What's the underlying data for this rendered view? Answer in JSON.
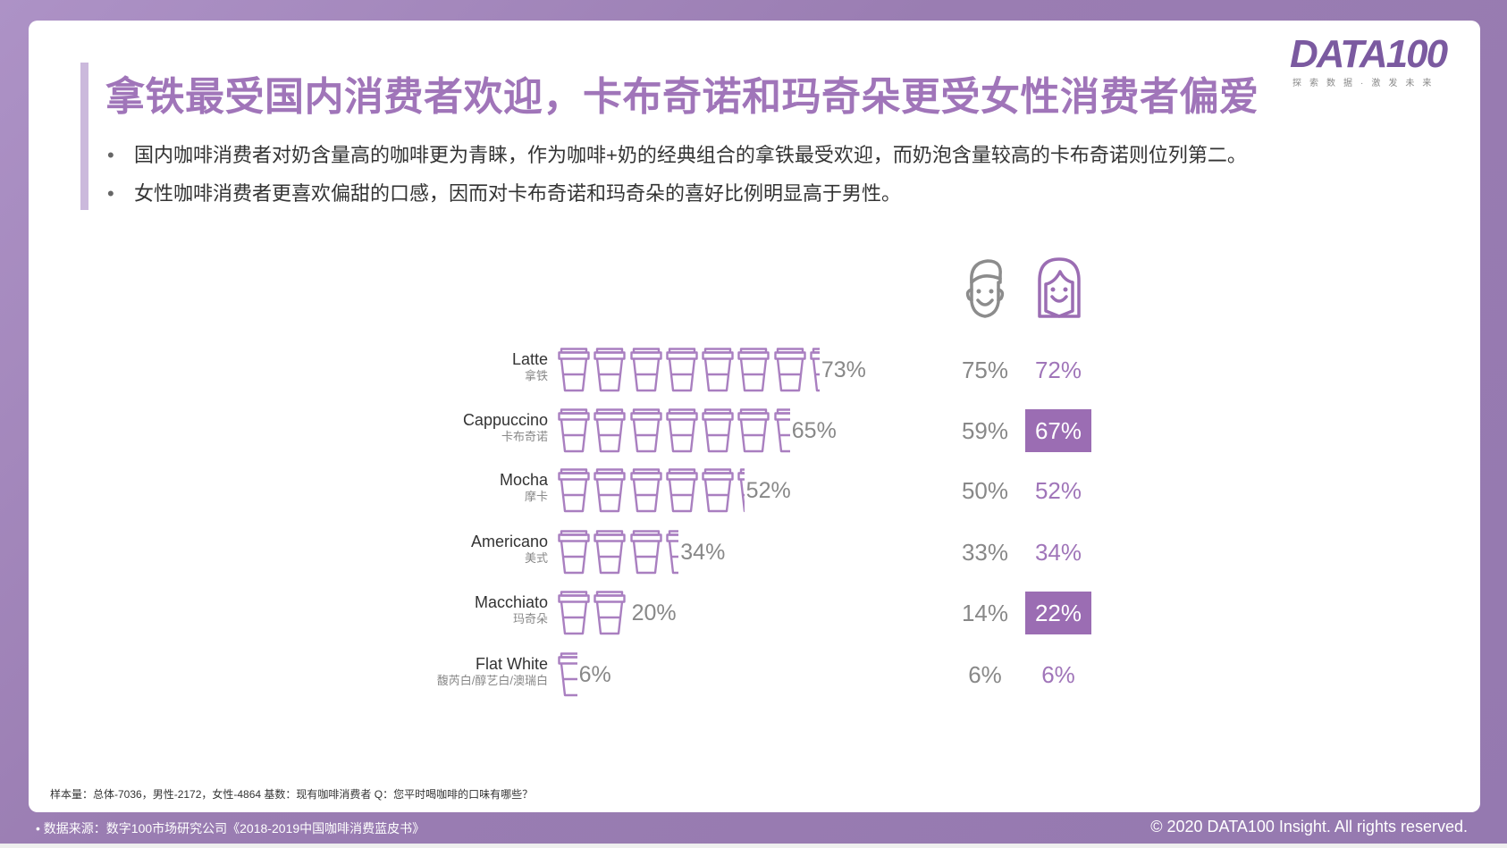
{
  "title": "拿铁最受国内消费者欢迎，卡布奇诺和玛奇朵更受女性消费者偏爱",
  "bullets": [
    "国内咖啡消费者对奶含量高的咖啡更为青睐，作为咖啡+奶的经典组合的拿铁最受欢迎，而奶泡含量较高的卡布奇诺则位列第二。",
    "女性咖啡消费者更喜欢偏甜的口感，因而对卡布奇诺和玛奇朵的喜好比例明显高于男性。"
  ],
  "bullet_symbol": "•",
  "logo": {
    "word": "DATA100",
    "tagline": "探索数据·激发未来"
  },
  "colors": {
    "accent": "#a075b9",
    "highlight": "#9b6db3",
    "muted": "#888888"
  },
  "chart_data": {
    "type": "pictogram",
    "unit_per_icon": 10,
    "icon": "coffee-cup-icon",
    "series_labels": [
      "总体",
      "男性",
      "女性"
    ],
    "categories": [
      {
        "en": "Latte",
        "cn": "拿铁",
        "total": 73,
        "male": 75,
        "female": 72,
        "female_highlight": false
      },
      {
        "en": "Cappuccino",
        "cn": "卡布奇诺",
        "total": 65,
        "male": 59,
        "female": 67,
        "female_highlight": true
      },
      {
        "en": "Mocha",
        "cn": "摩卡",
        "total": 52,
        "male": 50,
        "female": 52,
        "female_highlight": false
      },
      {
        "en": "Americano",
        "cn": "美式",
        "total": 34,
        "male": 33,
        "female": 34,
        "female_highlight": false
      },
      {
        "en": "Macchiato",
        "cn": "玛奇朵",
        "total": 20,
        "male": 14,
        "female": 22,
        "female_highlight": true
      },
      {
        "en": "Flat White",
        "cn": "馥芮白/醇艺白/澳瑞白",
        "total": 6,
        "male": 6,
        "female": 6,
        "female_highlight": false
      }
    ],
    "legend_icons": [
      "male-face-icon",
      "female-face-icon"
    ]
  },
  "footnote": "样本量：总体-7036，男性-2172，女性-4864 基数：现有咖啡消费者  Q：您平时喝咖啡的口味有哪些？",
  "source": "• 数据来源：数字100市场研究公司《2018-2019中国咖啡消费蓝皮书》",
  "copyright": "© 2020 DATA100 Insight. All rights reserved."
}
